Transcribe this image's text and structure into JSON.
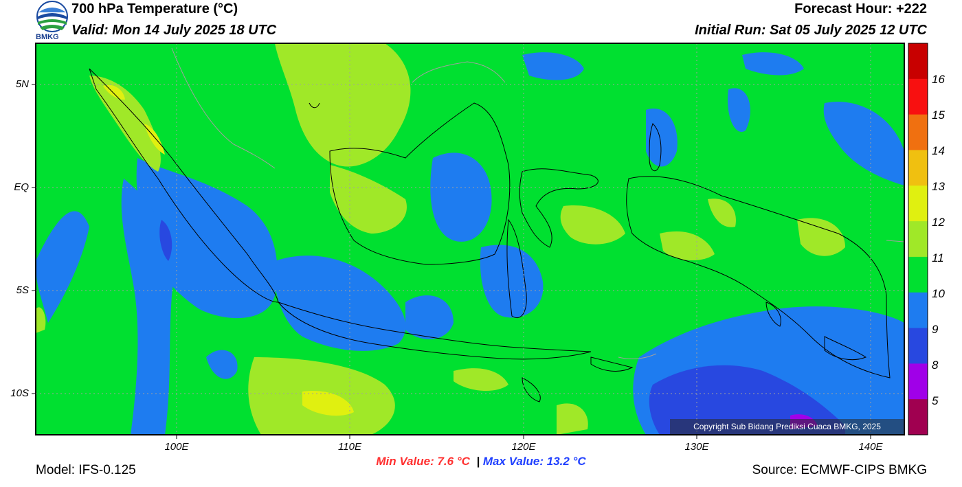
{
  "header": {
    "title": "700 hPa Temperature (°C)",
    "valid": "Valid: Mon 14 July 2025 18 UTC",
    "forecast_hour": "Forecast Hour: +222",
    "initial_run": "Initial Run: Sat 05 July 2025 12 UTC",
    "logo_text": "BMKG"
  },
  "map": {
    "lat_labels": [
      "5N",
      "EQ",
      "5S",
      "10S"
    ],
    "lon_labels": [
      "100E",
      "110E",
      "120E",
      "130E",
      "140E"
    ],
    "copyright": "Copyright Sub Bidang Prediksi Cuaca BMKG, 2025"
  },
  "colorbar": {
    "labels": [
      "16",
      "15",
      "14",
      "13",
      "12",
      "11",
      "10",
      "9",
      "8",
      "5"
    ],
    "colors": [
      "#c80000",
      "#f81010",
      "#f07010",
      "#f0c010",
      "#e0f010",
      "#a0e828",
      "#00e030",
      "#1e7cf0",
      "#2848e0",
      "#a000e8",
      "#a00050"
    ]
  },
  "stats": {
    "min": "Min Value: 7.6 °C",
    "separator": "|",
    "max": "Max Value: 13.2 °C",
    "min_color": "#ff3030",
    "max_color": "#2040ff"
  },
  "footer": {
    "model": "Model: IFS-0.125",
    "source": "Source: ECMWF-CIPS BMKG"
  }
}
